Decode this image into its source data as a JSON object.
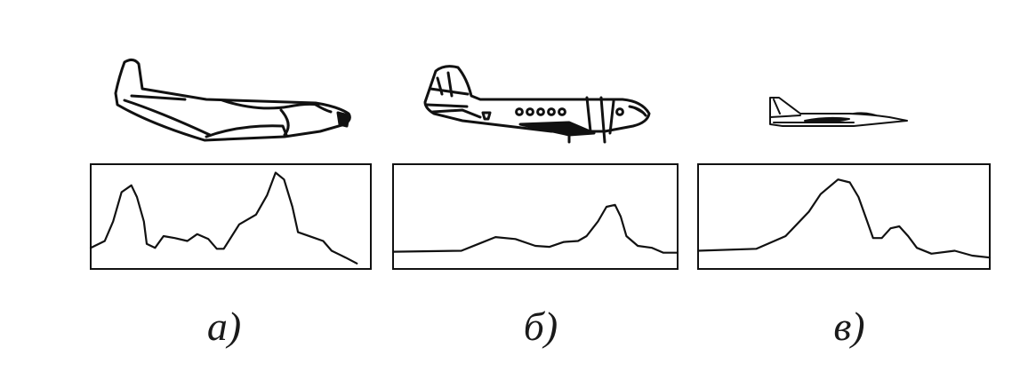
{
  "panels": [
    {
      "id": "a",
      "caption": "а)",
      "aircraft_icon": "transport-aircraft-icon",
      "signal": [
        [
          0,
          0.18
        ],
        [
          0.05,
          0.25
        ],
        [
          0.08,
          0.45
        ],
        [
          0.11,
          0.75
        ],
        [
          0.145,
          0.82
        ],
        [
          0.165,
          0.7
        ],
        [
          0.19,
          0.45
        ],
        [
          0.2,
          0.22
        ],
        [
          0.23,
          0.18
        ],
        [
          0.26,
          0.3
        ],
        [
          0.3,
          0.28
        ],
        [
          0.345,
          0.25
        ],
        [
          0.38,
          0.32
        ],
        [
          0.42,
          0.27
        ],
        [
          0.45,
          0.17
        ],
        [
          0.475,
          0.17
        ],
        [
          0.53,
          0.42
        ],
        [
          0.59,
          0.52
        ],
        [
          0.63,
          0.72
        ],
        [
          0.66,
          0.95
        ],
        [
          0.69,
          0.88
        ],
        [
          0.72,
          0.6
        ],
        [
          0.74,
          0.34
        ],
        [
          0.8,
          0.28
        ],
        [
          0.83,
          0.25
        ],
        [
          0.86,
          0.15
        ],
        [
          0.91,
          0.08
        ],
        [
          0.95,
          0.02
        ]
      ]
    },
    {
      "id": "b",
      "caption": "б)",
      "aircraft_icon": "propeller-airliner-icon",
      "signal": [
        [
          0,
          0.14
        ],
        [
          0.24,
          0.15
        ],
        [
          0.3,
          0.22
        ],
        [
          0.36,
          0.29
        ],
        [
          0.43,
          0.27
        ],
        [
          0.5,
          0.2
        ],
        [
          0.55,
          0.19
        ],
        [
          0.6,
          0.24
        ],
        [
          0.65,
          0.25
        ],
        [
          0.68,
          0.3
        ],
        [
          0.72,
          0.45
        ],
        [
          0.75,
          0.6
        ],
        [
          0.78,
          0.62
        ],
        [
          0.8,
          0.5
        ],
        [
          0.82,
          0.3
        ],
        [
          0.86,
          0.2
        ],
        [
          0.91,
          0.18
        ],
        [
          0.95,
          0.13
        ],
        [
          1,
          0.13
        ]
      ]
    },
    {
      "id": "c",
      "caption": "в)",
      "aircraft_icon": "jet-fighter-icon",
      "signal": [
        [
          0,
          0.15
        ],
        [
          0.2,
          0.17
        ],
        [
          0.3,
          0.3
        ],
        [
          0.38,
          0.55
        ],
        [
          0.42,
          0.73
        ],
        [
          0.48,
          0.88
        ],
        [
          0.52,
          0.85
        ],
        [
          0.55,
          0.7
        ],
        [
          0.58,
          0.45
        ],
        [
          0.6,
          0.28
        ],
        [
          0.63,
          0.28
        ],
        [
          0.66,
          0.38
        ],
        [
          0.69,
          0.4
        ],
        [
          0.72,
          0.3
        ],
        [
          0.75,
          0.18
        ],
        [
          0.8,
          0.12
        ],
        [
          0.88,
          0.15
        ],
        [
          0.94,
          0.1
        ],
        [
          1,
          0.08
        ]
      ]
    }
  ]
}
